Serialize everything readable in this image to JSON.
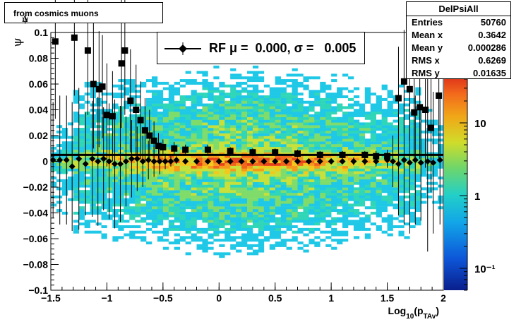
{
  "title": {
    "delta": "Δ",
    "psi": "ψ",
    "text": "from cosmics muons"
  },
  "stats": {
    "name": "DelPsiAll",
    "rows": [
      {
        "key": "Entries",
        "value": "50760"
      },
      {
        "key": "Mean x",
        "value": "0.3642"
      },
      {
        "key": "Mean y",
        "value": "0.000286"
      },
      {
        "key": "RMS x",
        "value": "0.6269"
      },
      {
        "key": "RMS y",
        "value": "0.01635"
      }
    ]
  },
  "fit_legend": {
    "text": "RF μ =  0.000, σ =   0.005"
  },
  "chart_data": {
    "type": "heatmap",
    "xlabel": "Log10(pTAv)",
    "xlabel_parts": {
      "base": "Log",
      "sub1": "10",
      "open": "(p",
      "sub2": "TAv",
      "close": ")"
    },
    "ylabel": "ψ",
    "xlim": [
      -1.5,
      2.0
    ],
    "ylim": [
      -0.1,
      0.1
    ],
    "x_ticks": [
      -1.5,
      -1,
      -0.5,
      0,
      0.5,
      1,
      1.5,
      2
    ],
    "x_tick_labels": [
      "−1.5",
      "−1",
      "−0.5",
      "0",
      "0.5",
      "1",
      "1.5",
      "2"
    ],
    "y_ticks": [
      -0.1,
      -0.08,
      -0.06,
      -0.04,
      -0.02,
      0,
      0.02,
      0.04,
      0.06,
      0.08,
      0.1
    ],
    "y_tick_labels": [
      "−0.1",
      "−0.08",
      "−0.06",
      "−0.04",
      "−0.02",
      "0",
      "0.02",
      "0.04",
      "0.06",
      "0.08",
      "0.1"
    ],
    "colorbar": {
      "scale": "log",
      "range": [
        0.05,
        40
      ],
      "labels": [
        "10⁻¹",
        "1",
        "10"
      ],
      "label_values": [
        0.1,
        1,
        10
      ]
    },
    "density_model": {
      "core_sigma": 0.004,
      "tail_sigma": 0.03,
      "peak_x": 0.2
    },
    "fit_line_y": 0.005,
    "series": [
      {
        "name": "RMS y",
        "marker": "square",
        "points": [
          [
            -1.46,
            0.093
          ],
          [
            -1.29,
            0.096
          ],
          [
            -1.17,
            0.086
          ],
          [
            -1.12,
            0.06
          ],
          [
            -1.07,
            0.056
          ],
          [
            -1.04,
            0.058
          ],
          [
            -1.0,
            0.036
          ],
          [
            -0.95,
            0.035
          ],
          [
            -0.87,
            0.076
          ],
          [
            -0.84,
            0.086
          ],
          [
            -0.79,
            0.047
          ],
          [
            -0.74,
            0.04
          ],
          [
            -0.7,
            0.032
          ],
          [
            -0.66,
            0.024
          ],
          [
            -0.62,
            0.02
          ],
          [
            -0.58,
            0.016
          ],
          [
            -0.54,
            0.012
          ],
          [
            -0.5,
            0.011
          ],
          [
            -0.4,
            0.01
          ],
          [
            -0.3,
            0.009
          ],
          [
            -0.1,
            0.009
          ],
          [
            0.1,
            0.008
          ],
          [
            0.3,
            0.007
          ],
          [
            0.5,
            0.007
          ],
          [
            0.7,
            0.006
          ],
          [
            0.9,
            0.005
          ],
          [
            1.1,
            0.005
          ],
          [
            1.3,
            0.005
          ],
          [
            1.4,
            0.004
          ],
          [
            1.5,
            0.004
          ],
          [
            1.6,
            0.049
          ],
          [
            1.65,
            0.062
          ],
          [
            1.7,
            0.056
          ],
          [
            1.74,
            0.038
          ],
          [
            1.79,
            0.042
          ],
          [
            1.84,
            0.04
          ],
          [
            1.89,
            0.026
          ],
          [
            1.96,
            0.051
          ]
        ],
        "errors": [
          0.06,
          0.045,
          0.05,
          0.05,
          0.045,
          0.04,
          0.04,
          0.035,
          0.05,
          0.05,
          0.04,
          0.035,
          0.03,
          0.025,
          0.02,
          0.015,
          0.01,
          0.006,
          0.005,
          0.004,
          0.004,
          0.003,
          0.003,
          0.003,
          0.003,
          0.003,
          0.003,
          0.003,
          0.004,
          0.005,
          0.04,
          0.04,
          0.04,
          0.035,
          0.04,
          0.045,
          0.05,
          0.05
        ]
      },
      {
        "name": "RF",
        "marker": "diamond",
        "points": [
          [
            -1.48,
            0.001
          ],
          [
            -1.42,
            0.001
          ],
          [
            -1.36,
            0.001
          ],
          [
            -1.31,
            -0.004
          ],
          [
            -1.25,
            0.002
          ],
          [
            -1.19,
            -0.002
          ],
          [
            -1.13,
            0.002
          ],
          [
            -1.08,
            0.0
          ],
          [
            -1.03,
            0.002
          ],
          [
            -0.98,
            0.0
          ],
          [
            -0.93,
            -0.002
          ],
          [
            -0.88,
            -0.002
          ],
          [
            -0.83,
            0.0
          ],
          [
            -0.78,
            0.002
          ],
          [
            -0.73,
            0.002
          ],
          [
            -0.68,
            0.0
          ],
          [
            -0.63,
            0.001
          ],
          [
            -0.58,
            0.0
          ],
          [
            -0.53,
            0.0
          ],
          [
            -0.48,
            0.0
          ],
          [
            -0.43,
            0.0
          ],
          [
            -0.38,
            0.001
          ],
          [
            -0.3,
            0.0
          ],
          [
            -0.2,
            0.0
          ],
          [
            -0.1,
            0.0
          ],
          [
            0.0,
            0.0
          ],
          [
            0.1,
            0.0
          ],
          [
            0.2,
            0.0
          ],
          [
            0.3,
            0.0
          ],
          [
            0.4,
            0.0
          ],
          [
            0.5,
            0.0
          ],
          [
            0.6,
            0.0
          ],
          [
            0.7,
            0.0
          ],
          [
            0.8,
            0.0
          ],
          [
            0.9,
            0.0
          ],
          [
            1.0,
            0.0
          ],
          [
            1.1,
            0.0
          ],
          [
            1.2,
            0.0
          ],
          [
            1.3,
            0.0
          ],
          [
            1.4,
            0.0
          ],
          [
            1.5,
            0.001
          ],
          [
            1.55,
            0.0
          ],
          [
            1.6,
            -0.002
          ],
          [
            1.65,
            0.001
          ],
          [
            1.7,
            -0.001
          ],
          [
            1.75,
            0.001
          ],
          [
            1.8,
            -0.001
          ],
          [
            1.86,
            0.0
          ],
          [
            1.91,
            -0.001
          ],
          [
            1.97,
            0.001
          ]
        ],
        "errors": [
          0.045,
          0.05,
          0.05,
          0.05,
          0.055,
          0.04,
          0.045,
          0.05,
          0.04,
          0.045,
          0.05,
          0.045,
          0.035,
          0.03,
          0.025,
          0.02,
          0.015,
          0.012,
          0.01,
          0.006,
          0.004,
          0.003,
          0.002,
          0.002,
          0.002,
          0.002,
          0.002,
          0.002,
          0.002,
          0.002,
          0.002,
          0.002,
          0.002,
          0.002,
          0.002,
          0.002,
          0.002,
          0.003,
          0.003,
          0.004,
          0.006,
          0.02,
          0.04,
          0.05,
          0.055,
          0.05,
          0.045,
          0.07,
          0.055,
          0.05
        ]
      }
    ]
  }
}
